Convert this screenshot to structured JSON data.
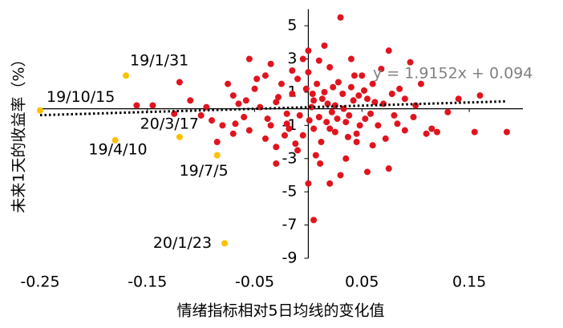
{
  "chart_data": {
    "type": "scatter",
    "xlabel": "情绪指标相对5日均线的变化值",
    "ylabel": "未来1天的收益率（%）",
    "xlim": [
      -0.25,
      0.2
    ],
    "ylim": [
      -9,
      6
    ],
    "xticks": [
      -0.25,
      -0.15,
      -0.05,
      0.05,
      0.15
    ],
    "yticks": [
      5,
      3,
      1,
      -1,
      -3,
      -5,
      -7,
      -9
    ],
    "grid": false,
    "trendline": {
      "slope": 1.9152,
      "intercept": 0.094,
      "label": "y = 1.9152x + 0.094",
      "color": "#000000"
    },
    "series": [
      {
        "color": "#e0141e",
        "x": [
          0.03,
          0.075,
          0.095,
          -0.055,
          -0.04,
          0.0,
          -0.005,
          0.02,
          0.05,
          0.06,
          -0.12,
          -0.09,
          -0.11,
          -0.07,
          -0.06,
          -0.05,
          -0.03,
          -0.02,
          -0.01,
          0.005,
          0.01,
          0.015,
          0.02,
          0.025,
          0.035,
          0.04,
          0.045,
          0.055,
          0.065,
          0.07,
          0.08,
          0.085,
          0.09,
          0.1,
          0.11,
          0.12,
          0.14,
          0.155,
          0.16,
          0.185,
          0.115,
          -0.145,
          -0.125,
          -0.16,
          -0.08,
          -0.085,
          -0.07,
          -0.04,
          -0.03,
          -0.03,
          -0.01,
          0.0,
          0.005,
          0.02,
          0.03,
          0.035,
          0.055,
          0.075,
          0.045,
          0.06,
          -0.02,
          -0.015,
          -0.005,
          0.0,
          0.008,
          0.012,
          0.018,
          0.022,
          0.028,
          0.032,
          0.038,
          0.042,
          0.048,
          0.052,
          0.058,
          0.062,
          0.068,
          0.072,
          0.078,
          0.083,
          -0.025,
          -0.035,
          -0.045,
          -0.055,
          -0.065,
          -0.075,
          -0.095,
          -0.1,
          -0.035,
          -0.015,
          0.01,
          0.015,
          0.04,
          0.025,
          0.005,
          -0.008,
          0.003,
          0.013,
          0.017,
          0.023,
          0.027,
          0.033,
          0.037,
          0.043,
          0.047,
          0.053,
          -0.012,
          -0.022,
          -0.028,
          -0.038,
          -0.048,
          -0.058,
          -0.068,
          0.09,
          0.098,
          0.105,
          0.13,
          -0.002,
          0.007,
          0.011,
          -0.018,
          0.001,
          0.004
        ],
        "values": [
          5.5,
          3.5,
          2.8,
          3.0,
          2.0,
          3.5,
          3.0,
          2.5,
          2.0,
          1.5,
          1.6,
          -0.7,
          0.5,
          0.8,
          -0.5,
          1.2,
          0.4,
          -0.3,
          1.8,
          0.5,
          -0.5,
          1.0,
          -1.2,
          0.2,
          -0.8,
          1.3,
          -1.5,
          0.6,
          -1.0,
          0.3,
          -0.4,
          1.2,
          -1.3,
          0.2,
          -1.5,
          -1.4,
          0.6,
          -1.4,
          0.8,
          -1.4,
          -1.2,
          0.2,
          -0.3,
          0.2,
          -1.0,
          -2.0,
          -1.5,
          -1.8,
          -2.3,
          -3.3,
          -2.5,
          -4.5,
          -6.7,
          -4.5,
          -4.0,
          -3.0,
          -3.8,
          -3.6,
          -2.0,
          -2.2,
          -0.9,
          0.9,
          -1.6,
          2.2,
          1.5,
          -2.0,
          0.3,
          -0.2,
          1.6,
          0.9,
          -0.4,
          0.5,
          -1.0,
          1.1,
          -0.3,
          0.4,
          2.4,
          -1.8,
          0.9,
          -0.9,
          1.5,
          -1.0,
          0.1,
          -1.3,
          0.3,
          1.5,
          0.1,
          -0.4,
          2.7,
          2.3,
          2.9,
          3.8,
          3.0,
          -1.4,
          -1.2,
          -0.4,
          0.1,
          0.6,
          -0.8,
          1.3,
          -0.6,
          0.0,
          -1.7,
          2.0,
          0.8,
          -0.6,
          -2.1,
          -1.6,
          0.7,
          -0.6,
          1.8,
          0.5,
          -0.9,
          0.6,
          -0.5,
          1.5,
          -0.2,
          1.2,
          -2.8,
          -3.3,
          -1.2,
          -0.7,
          0.9
        ]
      },
      {
        "color": "#ffc000",
        "x": [
          -0.17,
          -0.25,
          -0.12,
          -0.18,
          -0.085,
          -0.078
        ],
        "values": [
          2.0,
          -0.1,
          -1.7,
          -1.9,
          -2.8,
          -8.1
        ],
        "point_labels": [
          "19/1/31",
          "19/10/15",
          "20/3/17",
          "19/4/10",
          "19/7/5",
          "20/1/23"
        ]
      }
    ]
  }
}
